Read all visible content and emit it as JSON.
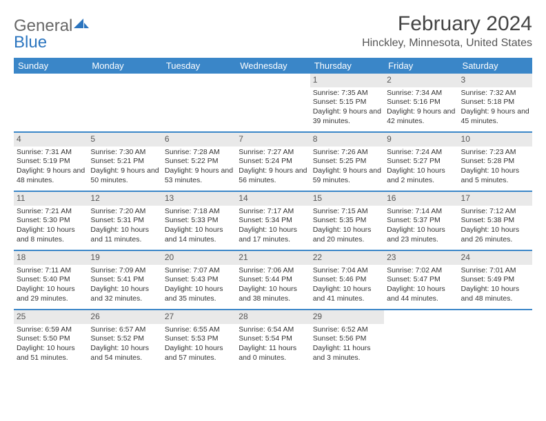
{
  "logo": {
    "part1": "General",
    "part2": "Blue"
  },
  "title": "February 2024",
  "subtitle": "Hinckley, Minnesota, United States",
  "colors": {
    "header_bg": "#3a86c8",
    "header_text": "#ffffff",
    "daynum_bg": "#e9e9e9",
    "week_border": "#3a86c8",
    "logo_accent": "#2b75bf"
  },
  "dow": [
    "Sunday",
    "Monday",
    "Tuesday",
    "Wednesday",
    "Thursday",
    "Friday",
    "Saturday"
  ],
  "first_weekday_index": 4,
  "days": [
    {
      "n": 1,
      "sunrise": "7:35 AM",
      "sunset": "5:15 PM",
      "daylight": "9 hours and 39 minutes."
    },
    {
      "n": 2,
      "sunrise": "7:34 AM",
      "sunset": "5:16 PM",
      "daylight": "9 hours and 42 minutes."
    },
    {
      "n": 3,
      "sunrise": "7:32 AM",
      "sunset": "5:18 PM",
      "daylight": "9 hours and 45 minutes."
    },
    {
      "n": 4,
      "sunrise": "7:31 AM",
      "sunset": "5:19 PM",
      "daylight": "9 hours and 48 minutes."
    },
    {
      "n": 5,
      "sunrise": "7:30 AM",
      "sunset": "5:21 PM",
      "daylight": "9 hours and 50 minutes."
    },
    {
      "n": 6,
      "sunrise": "7:28 AM",
      "sunset": "5:22 PM",
      "daylight": "9 hours and 53 minutes."
    },
    {
      "n": 7,
      "sunrise": "7:27 AM",
      "sunset": "5:24 PM",
      "daylight": "9 hours and 56 minutes."
    },
    {
      "n": 8,
      "sunrise": "7:26 AM",
      "sunset": "5:25 PM",
      "daylight": "9 hours and 59 minutes."
    },
    {
      "n": 9,
      "sunrise": "7:24 AM",
      "sunset": "5:27 PM",
      "daylight": "10 hours and 2 minutes."
    },
    {
      "n": 10,
      "sunrise": "7:23 AM",
      "sunset": "5:28 PM",
      "daylight": "10 hours and 5 minutes."
    },
    {
      "n": 11,
      "sunrise": "7:21 AM",
      "sunset": "5:30 PM",
      "daylight": "10 hours and 8 minutes."
    },
    {
      "n": 12,
      "sunrise": "7:20 AM",
      "sunset": "5:31 PM",
      "daylight": "10 hours and 11 minutes."
    },
    {
      "n": 13,
      "sunrise": "7:18 AM",
      "sunset": "5:33 PM",
      "daylight": "10 hours and 14 minutes."
    },
    {
      "n": 14,
      "sunrise": "7:17 AM",
      "sunset": "5:34 PM",
      "daylight": "10 hours and 17 minutes."
    },
    {
      "n": 15,
      "sunrise": "7:15 AM",
      "sunset": "5:35 PM",
      "daylight": "10 hours and 20 minutes."
    },
    {
      "n": 16,
      "sunrise": "7:14 AM",
      "sunset": "5:37 PM",
      "daylight": "10 hours and 23 minutes."
    },
    {
      "n": 17,
      "sunrise": "7:12 AM",
      "sunset": "5:38 PM",
      "daylight": "10 hours and 26 minutes."
    },
    {
      "n": 18,
      "sunrise": "7:11 AM",
      "sunset": "5:40 PM",
      "daylight": "10 hours and 29 minutes."
    },
    {
      "n": 19,
      "sunrise": "7:09 AM",
      "sunset": "5:41 PM",
      "daylight": "10 hours and 32 minutes."
    },
    {
      "n": 20,
      "sunrise": "7:07 AM",
      "sunset": "5:43 PM",
      "daylight": "10 hours and 35 minutes."
    },
    {
      "n": 21,
      "sunrise": "7:06 AM",
      "sunset": "5:44 PM",
      "daylight": "10 hours and 38 minutes."
    },
    {
      "n": 22,
      "sunrise": "7:04 AM",
      "sunset": "5:46 PM",
      "daylight": "10 hours and 41 minutes."
    },
    {
      "n": 23,
      "sunrise": "7:02 AM",
      "sunset": "5:47 PM",
      "daylight": "10 hours and 44 minutes."
    },
    {
      "n": 24,
      "sunrise": "7:01 AM",
      "sunset": "5:49 PM",
      "daylight": "10 hours and 48 minutes."
    },
    {
      "n": 25,
      "sunrise": "6:59 AM",
      "sunset": "5:50 PM",
      "daylight": "10 hours and 51 minutes."
    },
    {
      "n": 26,
      "sunrise": "6:57 AM",
      "sunset": "5:52 PM",
      "daylight": "10 hours and 54 minutes."
    },
    {
      "n": 27,
      "sunrise": "6:55 AM",
      "sunset": "5:53 PM",
      "daylight": "10 hours and 57 minutes."
    },
    {
      "n": 28,
      "sunrise": "6:54 AM",
      "sunset": "5:54 PM",
      "daylight": "11 hours and 0 minutes."
    },
    {
      "n": 29,
      "sunrise": "6:52 AM",
      "sunset": "5:56 PM",
      "daylight": "11 hours and 3 minutes."
    }
  ],
  "labels": {
    "sunrise": "Sunrise: ",
    "sunset": "Sunset: ",
    "daylight": "Daylight: "
  }
}
